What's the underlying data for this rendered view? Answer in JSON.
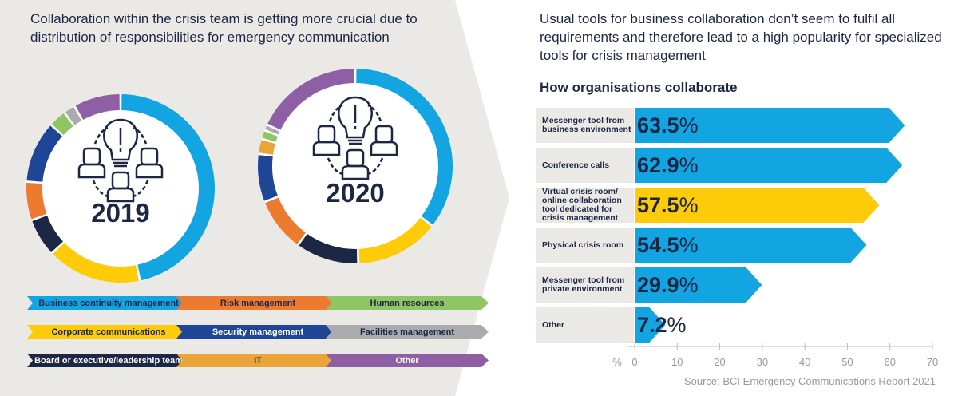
{
  "left_title": "Collaboration within the crisis team is getting more crucial due to distribution of responsibilities for emergency communication",
  "right_title": "Usual tools for business collaboration don’t seem to fulfil all requirements and therefore lead to a high popularity for specialized tools for crisis management",
  "source": "Source: BCI Emergency Communications Report 2021",
  "chart_data": [
    {
      "type": "pie",
      "title": "2019",
      "note": "donut, shares estimated from arc lengths (%)",
      "categories": [
        "Business continuity management",
        "Corporate communications",
        "Board or executive/leadership team",
        "Risk management",
        "Security management",
        "Human resources",
        "Facilities management",
        "Other"
      ],
      "values": [
        46,
        16,
        6.5,
        6.5,
        10.5,
        3,
        2,
        8
      ]
    },
    {
      "type": "pie",
      "title": "2020",
      "note": "donut, shares estimated from arc lengths (%)",
      "categories": [
        "Business continuity management",
        "Corporate communications",
        "Board or executive/leadership team",
        "Risk management",
        "Security management",
        "IT",
        "Human resources",
        "Facilities management",
        "Other"
      ],
      "values": [
        35.5,
        14,
        10.5,
        9,
        8,
        2.5,
        1.5,
        1,
        18
      ]
    },
    {
      "type": "bar",
      "orientation": "horizontal",
      "title": "How organisations collaborate",
      "categories": [
        "Messenger tool from business environment",
        "Conference calls",
        "Virtual crisis room/ online collaboration tool dedicated for crisis management",
        "Physical crisis room",
        "Messenger tool from private environment",
        "Other"
      ],
      "values": [
        63.5,
        62.9,
        57.5,
        54.5,
        29.9,
        7.2
      ],
      "value_labels": [
        "63.5",
        "62.9",
        "57.5",
        "54.5",
        "29.9",
        "7.2"
      ],
      "unit": "%",
      "xlabel": "%",
      "xlim": [
        0,
        70
      ],
      "xticks": [
        "0",
        "10",
        "20",
        "30",
        "40",
        "50",
        "60",
        "70"
      ],
      "highlight_index": 2
    }
  ],
  "legend": [
    {
      "label": "Business continuity management",
      "color": "#12a5e2",
      "text": "#1c2645"
    },
    {
      "label": "Risk management",
      "color": "#ec7b30",
      "text": "#1c2645"
    },
    {
      "label": "Human resources",
      "color": "#8dc663",
      "text": "#1c2645"
    },
    {
      "label": "Corporate communications",
      "color": "#fecb09",
      "text": "#1c2645"
    },
    {
      "label": "Security management",
      "color": "#1f4597",
      "text": "#ffffff"
    },
    {
      "label": "Facilities management",
      "color": "#a9abae",
      "text": "#1c2645"
    },
    {
      "label": "Board or executive/leadership team",
      "color": "#1c2645",
      "text": "#ffffff"
    },
    {
      "label": "IT",
      "color": "#e9a43a",
      "text": "#1c2645"
    },
    {
      "label": "Other",
      "color": "#8f5fa5",
      "text": "#ffffff"
    }
  ],
  "colors": {
    "Business continuity management": "#12a5e2",
    "Risk management": "#ec7b30",
    "Human resources": "#8dc663",
    "Corporate communications": "#fecb09",
    "Security management": "#1f4597",
    "Facilities management": "#a9abae",
    "Board or executive/leadership team": "#1c2645",
    "IT": "#e9a43a",
    "Other": "#8f5fa5",
    "bar": "#12a5e2",
    "bar_highlight": "#fecb09"
  }
}
